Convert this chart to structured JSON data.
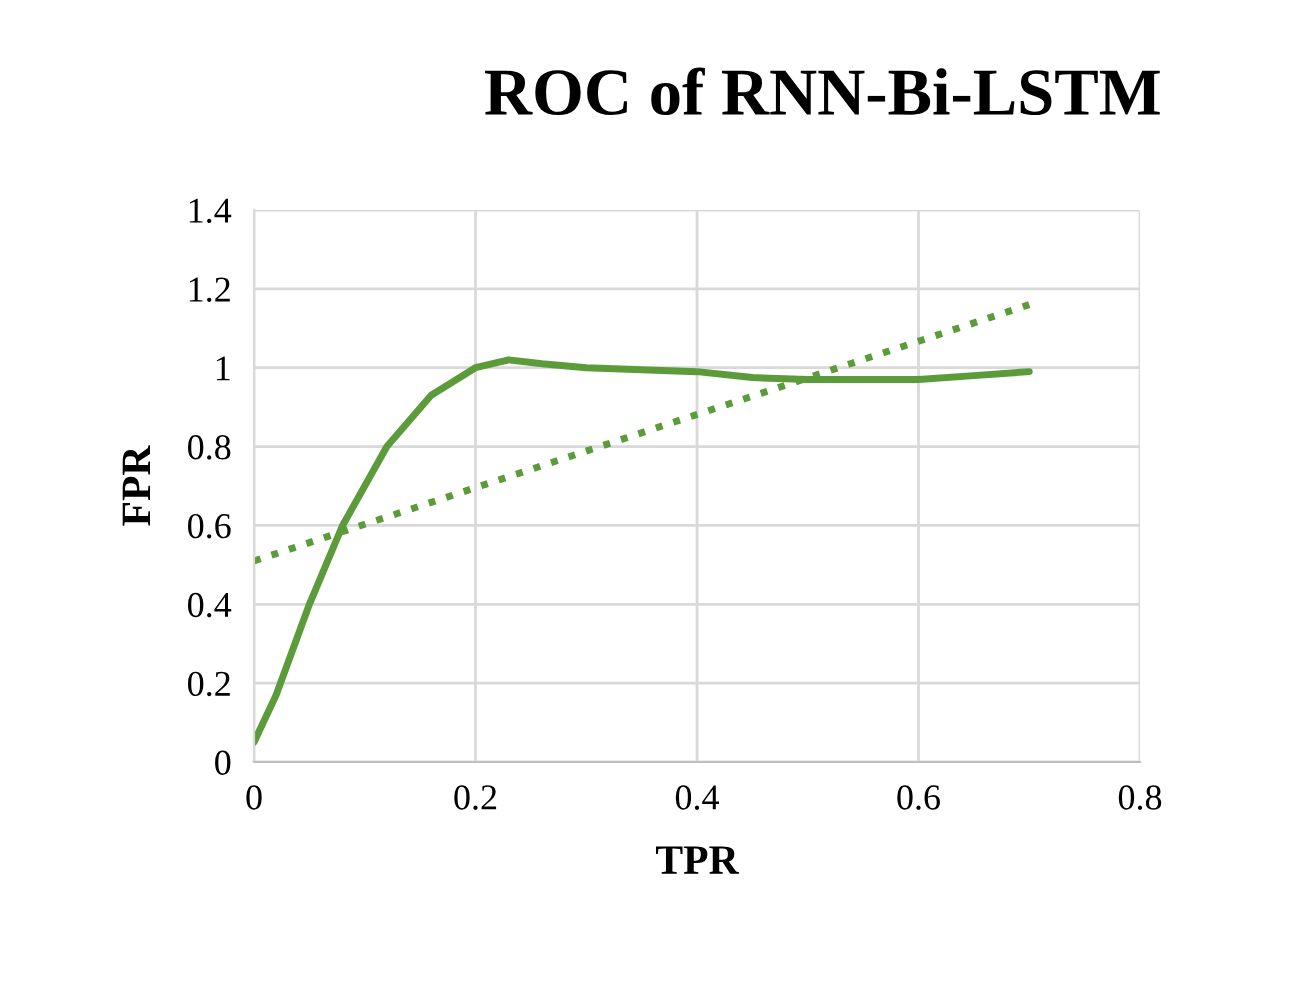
{
  "chart_data": {
    "type": "line",
    "title": "ROC of RNN-Bi-LSTM",
    "xlabel": "TPR",
    "ylabel": "FPR",
    "xlim": [
      0,
      0.8
    ],
    "xticks": [
      0,
      0.2,
      0.4,
      0.6,
      0.8
    ],
    "ylim": [
      0,
      1.4
    ],
    "yticks": [
      0,
      0.2,
      0.4,
      0.6,
      0.8,
      1,
      1.2,
      1.4
    ],
    "grid": true,
    "series": [
      {
        "color": "#5b9b3a",
        "line_style": "solid",
        "x": [
          0,
          0.02,
          0.05,
          0.08,
          0.12,
          0.16,
          0.2,
          0.23,
          0.26,
          0.3,
          0.4,
          0.45,
          0.5,
          0.6,
          0.65,
          0.7
        ],
        "values": [
          0.05,
          0.17,
          0.4,
          0.6,
          0.8,
          0.93,
          1.0,
          1.02,
          1.01,
          1.0,
          0.99,
          0.975,
          0.97,
          0.97,
          0.98,
          0.99
        ]
      },
      {
        "color": "#5b9b3a",
        "line_style": "dotted",
        "x": [
          0,
          0.7
        ],
        "values": [
          0.51,
          1.16
        ]
      }
    ]
  }
}
